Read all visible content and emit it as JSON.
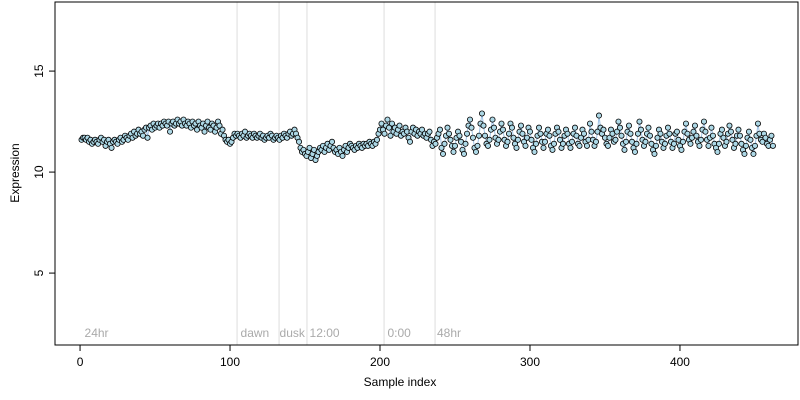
{
  "chart_data": {
    "type": "scatter",
    "xlabel": "Sample index",
    "ylabel": "Expression",
    "xlim": [
      -16.7,
      478.7
    ],
    "ylim": [
      1.44,
      18.42
    ],
    "xticks": [
      0,
      100,
      200,
      300,
      400
    ],
    "yticks": [
      5,
      10,
      15
    ],
    "color": "#add8e6",
    "line_color": "#9ec3e6",
    "vlines": [
      104.7,
      132.7,
      151.3,
      202.7,
      236.7
    ],
    "annotations": [
      {
        "text": "24hr",
        "x": 3,
        "y": 2
      },
      {
        "text": "dawn",
        "x": 107,
        "y": 2
      },
      {
        "text": "dusk",
        "x": 133,
        "y": 2
      },
      {
        "text": "12:00",
        "x": 153,
        "y": 2
      },
      {
        "text": "0:00",
        "x": 205,
        "y": 2
      },
      {
        "text": "48hr",
        "x": 238,
        "y": 2
      }
    ],
    "x": [
      1,
      2,
      3,
      4,
      5,
      6,
      7,
      8,
      9,
      10,
      11,
      12,
      13,
      14,
      15,
      16,
      17,
      18,
      19,
      20,
      21,
      22,
      23,
      24,
      25,
      26,
      27,
      28,
      29,
      30,
      31,
      32,
      33,
      34,
      35,
      36,
      37,
      38,
      39,
      40,
      41,
      42,
      43,
      44,
      45,
      46,
      47,
      48,
      49,
      50,
      51,
      52,
      53,
      54,
      55,
      56,
      57,
      58,
      59,
      60,
      61,
      62,
      63,
      64,
      65,
      66,
      67,
      68,
      69,
      70,
      71,
      72,
      73,
      74,
      75,
      76,
      77,
      78,
      79,
      80,
      81,
      82,
      83,
      84,
      85,
      86,
      87,
      88,
      89,
      90,
      91,
      92,
      93,
      94,
      95,
      96,
      97,
      98,
      99,
      100,
      101,
      102,
      103,
      104,
      105,
      106,
      107,
      108,
      109,
      110,
      111,
      112,
      113,
      114,
      115,
      116,
      117,
      118,
      119,
      120,
      121,
      122,
      123,
      124,
      125,
      126,
      127,
      128,
      129,
      130,
      131,
      132,
      133,
      134,
      135,
      136,
      137,
      138,
      139,
      140,
      141,
      142,
      143,
      144,
      145,
      146,
      147,
      148,
      149,
      150,
      151,
      152,
      153,
      154,
      155,
      156,
      157,
      158,
      159,
      160,
      161,
      162,
      163,
      164,
      165,
      166,
      167,
      168,
      169,
      170,
      171,
      172,
      173,
      174,
      175,
      176,
      177,
      178,
      179,
      180,
      181,
      182,
      183,
      184,
      185,
      186,
      187,
      188,
      189,
      190,
      191,
      192,
      193,
      194,
      195,
      196,
      197,
      198,
      199,
      200,
      201,
      202,
      203,
      204,
      205,
      206,
      207,
      208,
      209,
      210,
      211,
      212,
      213,
      214,
      215,
      216,
      217,
      218,
      219,
      220,
      221,
      222,
      223,
      224,
      225,
      226,
      227,
      228,
      229,
      230,
      231,
      232,
      233,
      234,
      235,
      236,
      237,
      238,
      239,
      240,
      241,
      242,
      243,
      244,
      245,
      246,
      247,
      248,
      249,
      250,
      251,
      252,
      253,
      254,
      255,
      256,
      257,
      258,
      259,
      260,
      261,
      262,
      263,
      264,
      265,
      266,
      267,
      268,
      269,
      270,
      271,
      272,
      273,
      274,
      275,
      276,
      277,
      278,
      279,
      280,
      281,
      282,
      283,
      284,
      285,
      286,
      287,
      288,
      289,
      290,
      291,
      292,
      293,
      294,
      295,
      296,
      297,
      298,
      299,
      300,
      301,
      302,
      303,
      304,
      305,
      306,
      307,
      308,
      309,
      310,
      311,
      312,
      313,
      314,
      315,
      316,
      317,
      318,
      319,
      320,
      321,
      322,
      323,
      324,
      325,
      326,
      327,
      328,
      329,
      330,
      331,
      332,
      333,
      334,
      335,
      336,
      337,
      338,
      339,
      340,
      341,
      342,
      343,
      344,
      345,
      346,
      347,
      348,
      349,
      350,
      351,
      352,
      353,
      354,
      355,
      356,
      357,
      358,
      359,
      360,
      361,
      362,
      363,
      364,
      365,
      366,
      367,
      368,
      369,
      370,
      371,
      372,
      373,
      374,
      375,
      376,
      377,
      378,
      379,
      380,
      381,
      382,
      383,
      384,
      385,
      386,
      387,
      388,
      389,
      390,
      391,
      392,
      393,
      394,
      395,
      396,
      397,
      398,
      399,
      400,
      401,
      402,
      403,
      404,
      405,
      406,
      407,
      408,
      409,
      410,
      411,
      412,
      413,
      414,
      415,
      416,
      417,
      418,
      419,
      420,
      421,
      422,
      423,
      424,
      425,
      426,
      427,
      428,
      429,
      430,
      431,
      432,
      433,
      434,
      435,
      436,
      437,
      438,
      439,
      440,
      441,
      442,
      443,
      444,
      445,
      446,
      447,
      448,
      449,
      450,
      451,
      452,
      453,
      454,
      455,
      456,
      457,
      458,
      459,
      460,
      461,
      462
    ],
    "values": [
      11.6,
      11.7,
      11.7,
      11.6,
      11.7,
      11.5,
      11.6,
      11.4,
      11.5,
      11.6,
      11.5,
      11.4,
      11.6,
      11.7,
      11.5,
      11.6,
      11.3,
      11.5,
      11.6,
      11.4,
      11.2,
      11.5,
      11.6,
      11.5,
      11.4,
      11.6,
      11.7,
      11.5,
      11.6,
      11.8,
      11.7,
      11.6,
      11.8,
      11.9,
      11.7,
      12.0,
      11.8,
      11.9,
      12.1,
      11.9,
      12.0,
      11.8,
      12.1,
      12.2,
      11.7,
      12.2,
      12.3,
      12.1,
      12.4,
      12.2,
      12.3,
      12.4,
      12.2,
      12.4,
      12.3,
      12.5,
      12.4,
      12.3,
      12.5,
      12.0,
      12.4,
      12.5,
      12.3,
      12.4,
      12.6,
      12.4,
      12.5,
      12.3,
      12.6,
      12.4,
      12.3,
      12.5,
      12.4,
      12.2,
      12.5,
      12.3,
      12.4,
      12.1,
      12.5,
      12.3,
      12.2,
      12.4,
      12.0,
      12.3,
      12.5,
      12.2,
      12.1,
      12.4,
      12.3,
      12.0,
      12.2,
      12.5,
      12.3,
      11.9,
      12.1,
      11.8,
      11.6,
      11.5,
      11.6,
      11.4,
      11.5,
      11.7,
      11.9,
      11.8,
      11.9,
      11.8,
      11.7,
      11.9,
      11.8,
      12.0,
      11.7,
      11.8,
      11.9,
      11.8,
      11.7,
      11.9,
      11.8,
      11.7,
      11.8,
      11.9,
      11.7,
      11.8,
      11.6,
      11.7,
      11.8,
      11.7,
      11.9,
      11.8,
      11.6,
      11.7,
      11.8,
      11.7,
      11.6,
      11.8,
      11.7,
      11.9,
      11.8,
      11.7,
      11.9,
      12.0,
      11.8,
      11.9,
      12.1,
      11.9,
      11.7,
      11.5,
      11.2,
      11.0,
      11.1,
      10.9,
      10.8,
      11.0,
      11.2,
      10.7,
      10.9,
      11.1,
      10.6,
      10.8,
      11.0,
      11.2,
      11.1,
      11.3,
      11.0,
      11.2,
      11.4,
      11.1,
      11.3,
      11.5,
      11.2,
      11.0,
      11.1,
      10.9,
      11.2,
      11.0,
      10.8,
      11.1,
      11.3,
      11.0,
      11.2,
      11.4,
      11.3,
      11.2,
      11.1,
      11.3,
      11.2,
      11.4,
      11.3,
      11.2,
      11.4,
      11.3,
      11.4,
      11.3,
      11.5,
      11.4,
      11.3,
      11.5,
      11.4,
      11.6,
      11.9,
      12.1,
      12.4,
      12.1,
      11.9,
      12.3,
      12.6,
      12.2,
      11.8,
      12.4,
      12.0,
      12.2,
      11.9,
      12.1,
      12.3,
      11.8,
      12.0,
      11.9,
      12.2,
      12.0,
      11.7,
      11.5,
      12.0,
      12.2,
      11.9,
      12.1,
      11.8,
      12.0,
      11.9,
      12.1,
      11.8,
      11.9,
      11.7,
      11.9,
      12.0,
      11.6,
      11.3,
      11.5,
      11.4,
      11.7,
      11.9,
      12.1,
      11.2,
      10.9,
      11.4,
      11.8,
      12.2,
      11.9,
      11.6,
      11.3,
      11.0,
      11.3,
      11.7,
      12.0,
      11.8,
      11.5,
      11.1,
      10.9,
      11.4,
      11.9,
      12.3,
      12.6,
      12.2,
      11.7,
      11.2,
      11.0,
      11.3,
      11.8,
      12.4,
      12.9,
      12.3,
      11.8,
      11.4,
      11.3,
      11.6,
      12.1,
      12.6,
      12.2,
      11.7,
      11.4,
      11.6,
      12.0,
      12.4,
      12.1,
      11.6,
      11.3,
      11.5,
      11.9,
      12.4,
      12.2,
      11.7,
      11.4,
      11.2,
      11.6,
      12.0,
      12.3,
      11.9,
      11.5,
      11.3,
      11.7,
      12.2,
      12.0,
      11.6,
      11.2,
      11.0,
      11.4,
      11.8,
      12.2,
      11.9,
      11.5,
      11.2,
      11.5,
      11.9,
      12.1,
      11.8,
      11.3,
      11.1,
      11.4,
      11.9,
      12.2,
      12.0,
      11.6,
      11.2,
      11.4,
      11.8,
      12.1,
      11.9,
      11.4,
      11.2,
      11.5,
      11.9,
      12.2,
      11.8,
      11.4,
      11.3,
      11.7,
      12.1,
      11.9,
      11.5,
      11.3,
      11.6,
      12.4,
      12.0,
      11.6,
      11.3,
      11.5,
      12.0,
      12.8,
      12.2,
      11.9,
      12.1,
      11.7,
      11.4,
      11.3,
      11.7,
      12.1,
      11.9,
      11.5,
      11.6,
      12.0,
      12.5,
      12.2,
      11.8,
      11.4,
      11.1,
      11.5,
      12.0,
      12.3,
      11.9,
      11.5,
      11.2,
      11.0,
      11.4,
      11.9,
      12.5,
      12.1,
      11.6,
      11.3,
      11.5,
      11.9,
      12.2,
      11.8,
      11.4,
      11.1,
      10.9,
      11.3,
      11.7,
      12.1,
      11.9,
      11.5,
      11.2,
      11.4,
      11.8,
      12.2,
      11.9,
      11.5,
      11.2,
      11.4,
      11.9,
      12.0,
      11.6,
      11.3,
      11.1,
      11.5,
      12.0,
      12.4,
      11.9,
      11.6,
      11.4,
      11.7,
      12.0,
      12.3,
      11.8,
      11.5,
      11.3,
      11.6,
      12.1,
      12.5,
      12.0,
      11.6,
      11.3,
      11.7,
      12.2,
      11.8,
      11.4,
      11.2,
      11.0,
      11.4,
      11.9,
      12.1,
      11.7,
      11.3,
      11.5,
      11.9,
      12.3,
      12.0,
      11.6,
      11.2,
      11.4,
      11.8,
      12.1,
      11.8,
      11.4,
      11.1,
      10.9,
      11.3,
      11.7,
      12.0,
      11.6,
      11.2,
      10.9,
      11.3,
      11.8,
      12.4,
      11.9,
      11.6,
      11.5,
      11.9,
      11.7,
      11.4,
      11.3,
      11.6,
      11.8,
      11.3
    ]
  }
}
